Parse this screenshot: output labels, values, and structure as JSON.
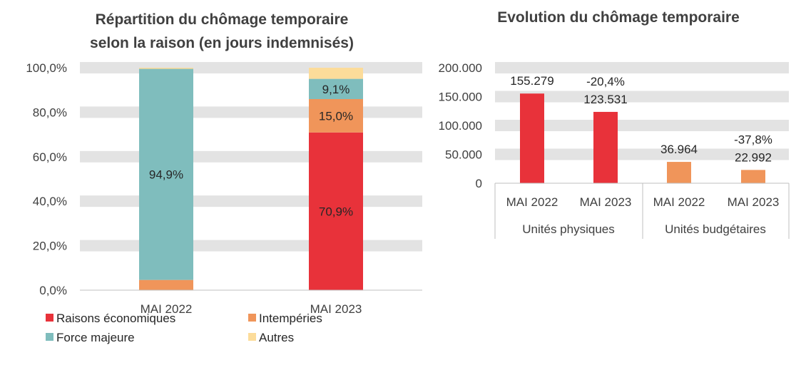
{
  "chart_data": [
    {
      "type": "bar",
      "stacked": true,
      "title_lines": [
        "Répartition du chômage temporaire",
        "selon la raison (en jours indemnisés)"
      ],
      "categories": [
        "MAI 2022",
        "MAI 2023"
      ],
      "ylim": [
        0,
        100
      ],
      "yticks": [
        "0,0%",
        "20,0%",
        "40,0%",
        "60,0%",
        "80,0%",
        "100,0%"
      ],
      "series": [
        {
          "name": "Raisons économiques",
          "color": "#E8323A",
          "values": [
            0.0,
            70.9
          ],
          "labels": [
            "",
            "70,9%"
          ]
        },
        {
          "name": "Intempéries",
          "color": "#F0955A",
          "values": [
            4.6,
            15.0
          ],
          "labels": [
            "",
            "15,0%"
          ]
        },
        {
          "name": "Force majeure",
          "color": "#7FBDBD",
          "values": [
            94.9,
            9.1
          ],
          "labels": [
            "94,9%",
            "9,1%"
          ]
        },
        {
          "name": "Autres",
          "color": "#FCDC9A",
          "values": [
            0.5,
            5.0
          ],
          "labels": [
            "",
            ""
          ]
        }
      ],
      "grid": true,
      "legend": "bottom"
    },
    {
      "type": "bar",
      "title": "Evolution du chômage temporaire",
      "categories": [
        "MAI 2022",
        "MAI 2023",
        "MAI 2022",
        "MAI 2023"
      ],
      "groups": [
        "Unités physiques",
        "Unités budgétaires"
      ],
      "values": [
        155279,
        123531,
        36964,
        22992
      ],
      "value_labels": [
        "155.279",
        "123.531",
        "36.964",
        "22.992"
      ],
      "change_labels": [
        "",
        "-20,4%",
        "",
        "-37,8%"
      ],
      "colors": [
        "#E8323A",
        "#E8323A",
        "#F0955A",
        "#F0955A"
      ],
      "ylim": [
        0,
        200000
      ],
      "yticks": [
        "0",
        "50.000",
        "100.000",
        "150.000",
        "200.000"
      ],
      "grid": true
    }
  ]
}
